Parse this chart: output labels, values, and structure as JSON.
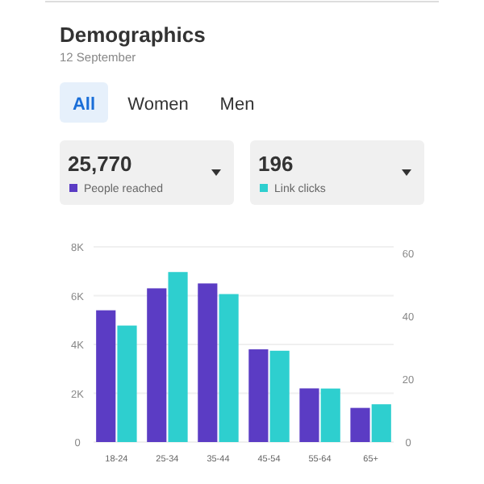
{
  "chart_data": {
    "type": "bar",
    "title": "Demographics",
    "subtitle": "12 September",
    "annotations": [
      "All",
      "Women",
      "Men",
      "25,770",
      "196"
    ],
    "categories": [
      "18-24",
      "25-34",
      "35-44",
      "45-54",
      "55-64",
      "65+"
    ],
    "series": [
      {
        "name": "People reached",
        "color": "#5b3cc4",
        "values": [
          5400,
          6300,
          6500,
          3800,
          2200,
          1400
        ]
      },
      {
        "name": "Link clicks",
        "color": "#2ecfcf",
        "axis": "y2",
        "values": [
          37,
          54,
          47,
          29,
          17,
          12
        ]
      }
    ],
    "ylim": [
      0,
      8000
    ],
    "yticks": [
      {
        "value": 0,
        "label": "0"
      },
      {
        "value": 2000,
        "label": "2K"
      },
      {
        "value": 4000,
        "label": "4K"
      },
      {
        "value": 6000,
        "label": "6K"
      },
      {
        "value": 8000,
        "label": "8K"
      }
    ],
    "y2lim": [
      0,
      62
    ],
    "y2ticks": [
      0,
      20,
      40,
      60
    ],
    "grid": "y",
    "legend": "top"
  }
}
